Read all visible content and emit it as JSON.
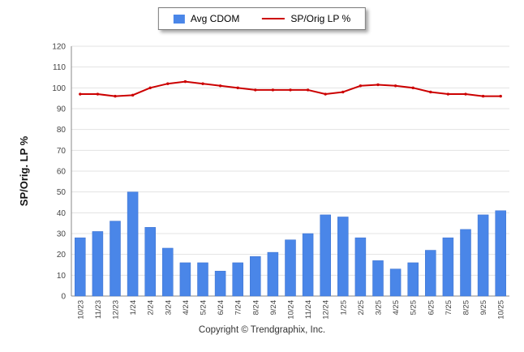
{
  "legend": {
    "items": [
      {
        "label": "Avg CDOM",
        "type": "bar",
        "color": "#4a86e8"
      },
      {
        "label": "SP/Orig LP %",
        "type": "line",
        "color": "#cc0000"
      }
    ]
  },
  "footer": {
    "copyright": "Copyright © Trendgraphix, Inc."
  },
  "chart_data": {
    "type": "bar",
    "subtype": "bar+line combo",
    "title": "",
    "xlabel": "",
    "ylabel": "SP/Orig. LP %",
    "ylim": [
      0,
      120
    ],
    "yticks": [
      0,
      10,
      20,
      30,
      40,
      50,
      60,
      70,
      80,
      90,
      100,
      110,
      120
    ],
    "grid": true,
    "legend_position": "top",
    "categories": [
      "10/23",
      "11/23",
      "12/23",
      "1/24",
      "2/24",
      "3/24",
      "4/24",
      "5/24",
      "6/24",
      "7/24",
      "8/24",
      "9/24",
      "10/24",
      "11/24",
      "12/24",
      "1/25",
      "2/25",
      "3/25",
      "4/25",
      "5/25",
      "6/25",
      "7/25",
      "8/25",
      "9/25",
      "10/25"
    ],
    "series": [
      {
        "name": "Avg CDOM",
        "type": "bar",
        "color": "#4a86e8",
        "values": [
          28,
          31,
          36,
          50,
          33,
          23,
          16,
          16,
          12,
          16,
          19,
          21,
          27,
          30,
          39,
          38,
          28,
          17,
          13,
          16,
          22,
          28,
          32,
          39,
          41
        ]
      },
      {
        "name": "SP/Orig LP %",
        "type": "line",
        "color": "#cc0000",
        "values": [
          97,
          97,
          96,
          96.5,
          100,
          102,
          103,
          102,
          101,
          100,
          99,
          99,
          99,
          99,
          97,
          98,
          101,
          101.5,
          101,
          100,
          98,
          97,
          97,
          96,
          96
        ]
      }
    ]
  }
}
